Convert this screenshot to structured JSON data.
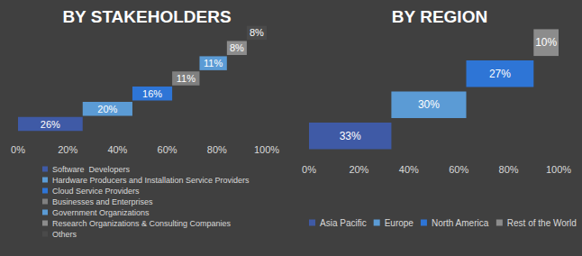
{
  "chart_data": [
    {
      "type": "waterfall",
      "orientation": "horizontal",
      "title": "BY STAKEHOLDERS",
      "categories": [
        "Software  Developers",
        "Hardware Producers and Installation Service Providers",
        "Cloud Service Providers",
        "Businesses and Enterprises",
        "Government Organizations",
        "Research Organizations & Consulting Companies",
        "Others"
      ],
      "values": [
        26,
        20,
        16,
        11,
        11,
        8,
        8
      ],
      "value_labels": [
        "26%",
        "20%",
        "16%",
        "11%",
        "11%",
        "8%",
        "8%"
      ],
      "colors": [
        "#3F5AA6",
        "#5B9BD5",
        "#2E75D6",
        "#808080",
        "#5B9BD5",
        "#8C8C8C",
        "#4A4A4A"
      ],
      "xlim": [
        0,
        100
      ],
      "xticks": [
        {
          "value": 0,
          "label": "0%"
        },
        {
          "value": 20,
          "label": "20%"
        },
        {
          "value": 40,
          "label": "40%"
        },
        {
          "value": 60,
          "label": "60%"
        },
        {
          "value": 80,
          "label": "80%"
        },
        {
          "value": 100,
          "label": "100%"
        }
      ],
      "grid": false,
      "data_labels": true,
      "tick_labels": "x",
      "legend": "bottom"
    },
    {
      "type": "waterfall",
      "orientation": "horizontal",
      "title": "BY REGION",
      "categories": [
        "Asia Pacific",
        "Europe",
        "North America",
        "Rest of the World"
      ],
      "values": [
        33,
        30,
        27,
        10
      ],
      "value_labels": [
        "33%",
        "30%",
        "27%",
        "10%"
      ],
      "colors": [
        "#3F5AA6",
        "#5B9BD5",
        "#2E75D6",
        "#8C8C8C"
      ],
      "xlim": [
        0,
        100
      ],
      "xticks": [
        {
          "value": 0,
          "label": "0%"
        },
        {
          "value": 20,
          "label": "20%"
        },
        {
          "value": 40,
          "label": "40%"
        },
        {
          "value": 60,
          "label": "60%"
        },
        {
          "value": 80,
          "label": "80%"
        },
        {
          "value": 100,
          "label": "100%"
        }
      ],
      "grid": false,
      "data_labels": true,
      "tick_labels": "x",
      "legend": "bottom"
    }
  ]
}
